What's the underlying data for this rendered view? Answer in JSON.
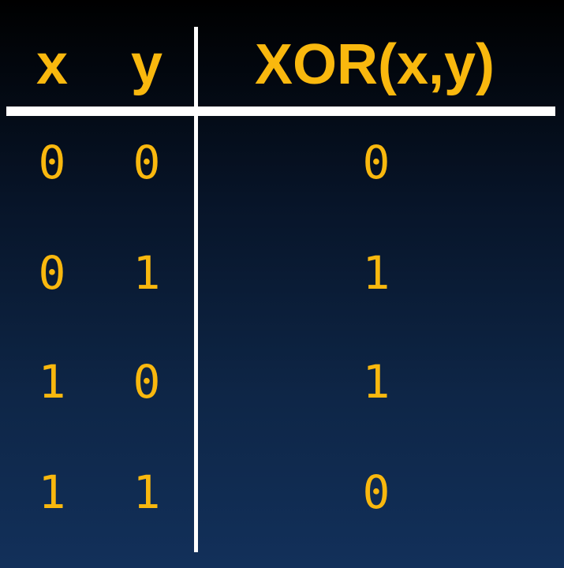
{
  "truth_table": {
    "headers": [
      "x",
      "y",
      "XOR(x,y)"
    ],
    "rows": [
      [
        "0",
        "0",
        "0"
      ],
      [
        "0",
        "1",
        "1"
      ],
      [
        "1",
        "0",
        "1"
      ],
      [
        "1",
        "1",
        "0"
      ]
    ]
  },
  "colors": {
    "text": "#f9b80e",
    "lines": "#ffffff",
    "background_top": "#000000",
    "background_bottom": "#12305a"
  }
}
